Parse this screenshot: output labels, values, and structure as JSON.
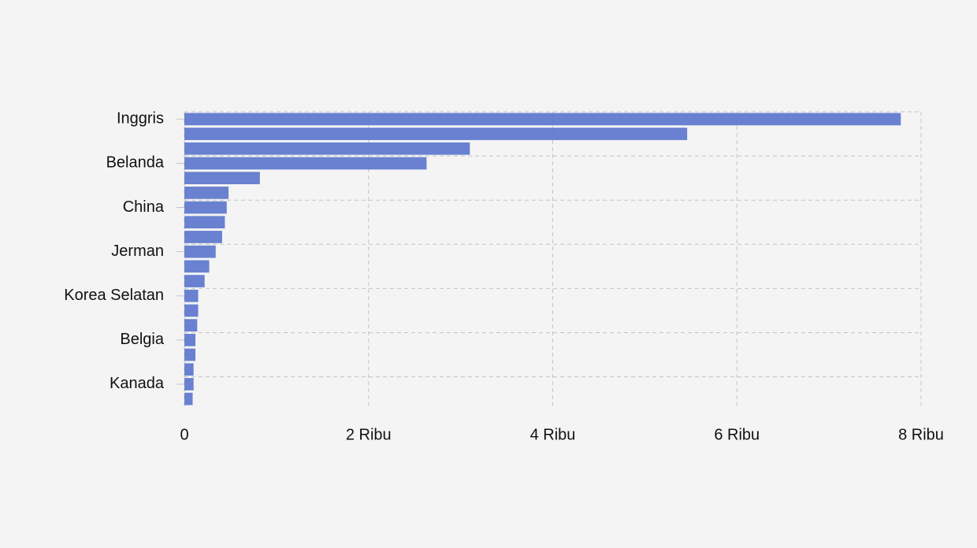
{
  "chart_data": {
    "type": "bar",
    "orientation": "horizontal",
    "categories": [
      "Inggris",
      null,
      null,
      "Belanda",
      null,
      null,
      "China",
      null,
      null,
      "Jerman",
      null,
      null,
      "Korea Selatan",
      null,
      null,
      "Belgia",
      null,
      null,
      "Kanada",
      null
    ],
    "values": [
      7780,
      5460,
      3100,
      2630,
      820,
      480,
      460,
      440,
      410,
      340,
      270,
      220,
      150,
      150,
      140,
      120,
      120,
      100,
      100,
      90
    ],
    "color": "#5a74cc",
    "xlim": [
      0,
      8000
    ],
    "xticks": [
      0,
      {
        "value": 2000,
        "label": "2 Ribu"
      },
      {
        "value": 4000,
        "label": "4 Ribu"
      },
      {
        "value": 6000,
        "label": "6 Ribu"
      },
      {
        "value": 8000,
        "label": "8 Ribu"
      }
    ],
    "grid": true
  }
}
